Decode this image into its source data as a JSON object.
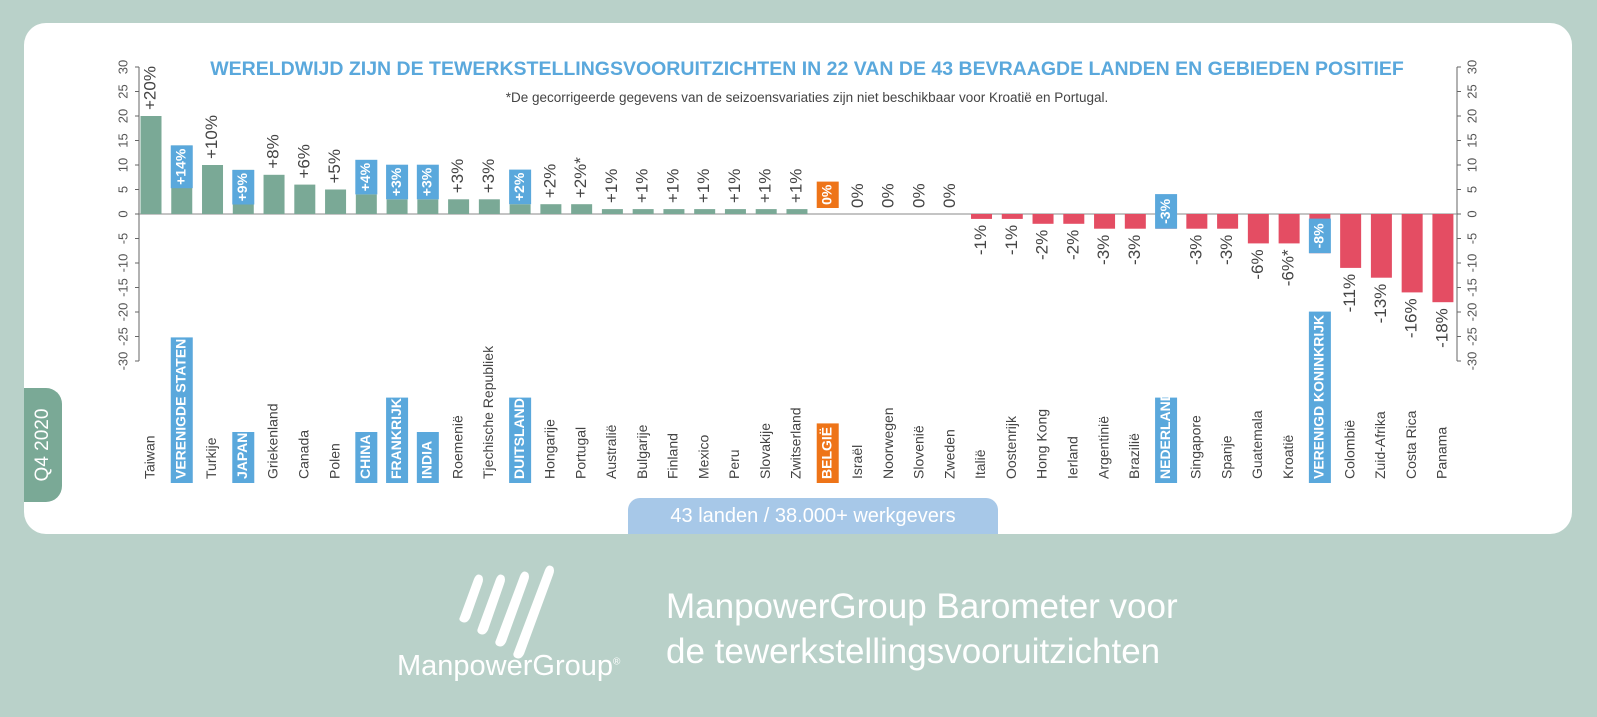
{
  "tab_label": "Q4 2020",
  "pill_label": "43 landen / 38.000+ werkgevers",
  "footer": {
    "line1": "ManpowerGroup Barometer voor",
    "line2": "de tewerkstellingsvooruitzichten",
    "logo_text": "ManpowerGroup",
    "logo_mark": "®"
  },
  "colors": {
    "positive": "#7aa996",
    "negative": "#e44d63",
    "highlight": "#5aa8dc",
    "belgium": "#ee7418",
    "title": "#5aa8dc"
  },
  "chart_data": {
    "type": "bar",
    "title": "WERELDWIJD ZIJN DE TEWERKSTELLINGSVOORUITZICHTEN IN 22 VAN DE 43 BEVRAAGDE LANDEN EN GEBIEDEN POSITIEF",
    "subtitle": "*De gecorrigeerde gegevens van de seizoensvariaties zijn niet beschikbaar voor Kroatië en Portugal.",
    "ylim": [
      -30,
      30
    ],
    "yticks": [
      "30",
      "25",
      "20",
      "15",
      "10",
      "5",
      "0",
      "-5",
      "-10",
      "-15",
      "-20",
      "-25",
      "-30"
    ],
    "right_yticks": [
      "30",
      "25",
      "20",
      "15",
      "10",
      "5",
      "0",
      "-5",
      "-10",
      "-15",
      "-20",
      "-25",
      "-30"
    ],
    "categories": [
      "Taiwan",
      "VERENIGDE STATEN",
      "Turkije",
      "JAPAN",
      "Griekenland",
      "Canada",
      "Polen",
      "CHINA",
      "FRANKRIJK",
      "INDIA",
      "Roemenië",
      "Tjechische Republiek",
      "DUITSLAND",
      "Hongarije",
      "Portugal",
      "Australië",
      "Bulgarije",
      "Finland",
      "Mexico",
      "Peru",
      "Slovakije",
      "Zwitserland",
      "BELGIË",
      "Israël",
      "Noorwegen",
      "Slovenië",
      "Zweden",
      "Italië",
      "Oostenrijk",
      "Hong Kong",
      "Ierland",
      "Argentinië",
      "Brazilië",
      "NEDERLAND",
      "Singapore",
      "Spanje",
      "Guatemala",
      "Kroatië",
      "VERENIGD KONINKRIJK",
      "Colombië",
      "Zuid-Afrika",
      "Costa Rica",
      "Panama"
    ],
    "values": [
      20,
      14,
      10,
      9,
      8,
      6,
      5,
      4,
      3,
      3,
      3,
      3,
      2,
      2,
      2,
      1,
      1,
      1,
      1,
      1,
      1,
      1,
      0,
      0,
      0,
      0,
      0,
      -1,
      -1,
      -2,
      -2,
      -3,
      -3,
      -3,
      -3,
      -3,
      -6,
      -6,
      -8,
      -11,
      -13,
      -16,
      -18
    ],
    "labels": [
      "+20%",
      "+14%",
      "+10%",
      "+9%",
      "+8%",
      "+6%",
      "+5%",
      "+4%",
      "+3%",
      "+3%",
      "+3%",
      "+3%",
      "+2%",
      "+2%",
      "+2%*",
      "+1%",
      "+1%",
      "+1%",
      "+1%",
      "+1%",
      "+1%",
      "+1%",
      "0%",
      "0%",
      "0%",
      "0%",
      "0%",
      "-1%",
      "-1%",
      "-2%",
      "-2%",
      "-3%",
      "-3%",
      "-3%",
      "-3%",
      "-3%",
      "-6%",
      "-6%*",
      "-8%",
      "-11%",
      "-13%",
      "-16%",
      "-18%"
    ],
    "highlighted": [
      "VERENIGDE STATEN",
      "JAPAN",
      "CHINA",
      "FRANKRIJK",
      "INDIA",
      "DUITSLAND",
      "NEDERLAND",
      "VERENIGD KONINKRIJK"
    ],
    "home_country": "BELGIË"
  }
}
